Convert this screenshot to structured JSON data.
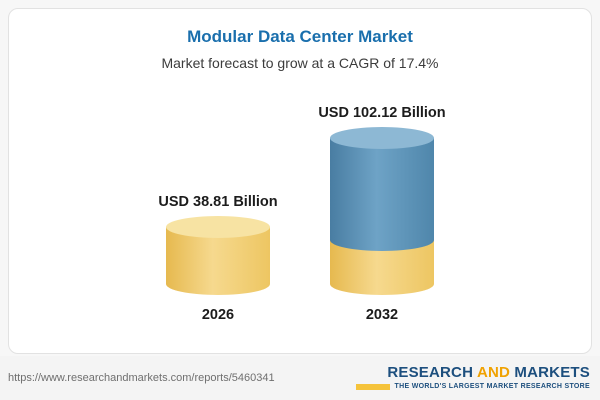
{
  "chart_data": {
    "type": "bar",
    "subtype": "3d-cylinder",
    "title": "Modular Data Center Market",
    "subtitle": "Market forecast to grow at a CAGR of 17.4%",
    "cagr_percent": 17.4,
    "unit": "USD Billion",
    "categories": [
      "2026",
      "2032"
    ],
    "values": [
      38.81,
      102.12
    ],
    "value_labels": [
      "USD 38.81 Billion",
      "USD 102.12 Billion"
    ],
    "legend": "none",
    "grid": false,
    "colors": {
      "bar_2026": "#f2cf6f",
      "bar_2032_top_segment": "#5890ba",
      "bar_2032_bottom_segment": "#f2cf6f",
      "title_text": "#1a6fad"
    }
  },
  "footer": {
    "url": "https://www.researchandmarkets.com/reports/5460341",
    "logo": {
      "word1": "RESEARCH",
      "word2": "AND",
      "word3": "MARKETS",
      "tagline": "THE WORLD'S LARGEST MARKET RESEARCH STORE",
      "colors": {
        "blue": "#1d4f7e",
        "gold": "#f0a202"
      }
    }
  }
}
